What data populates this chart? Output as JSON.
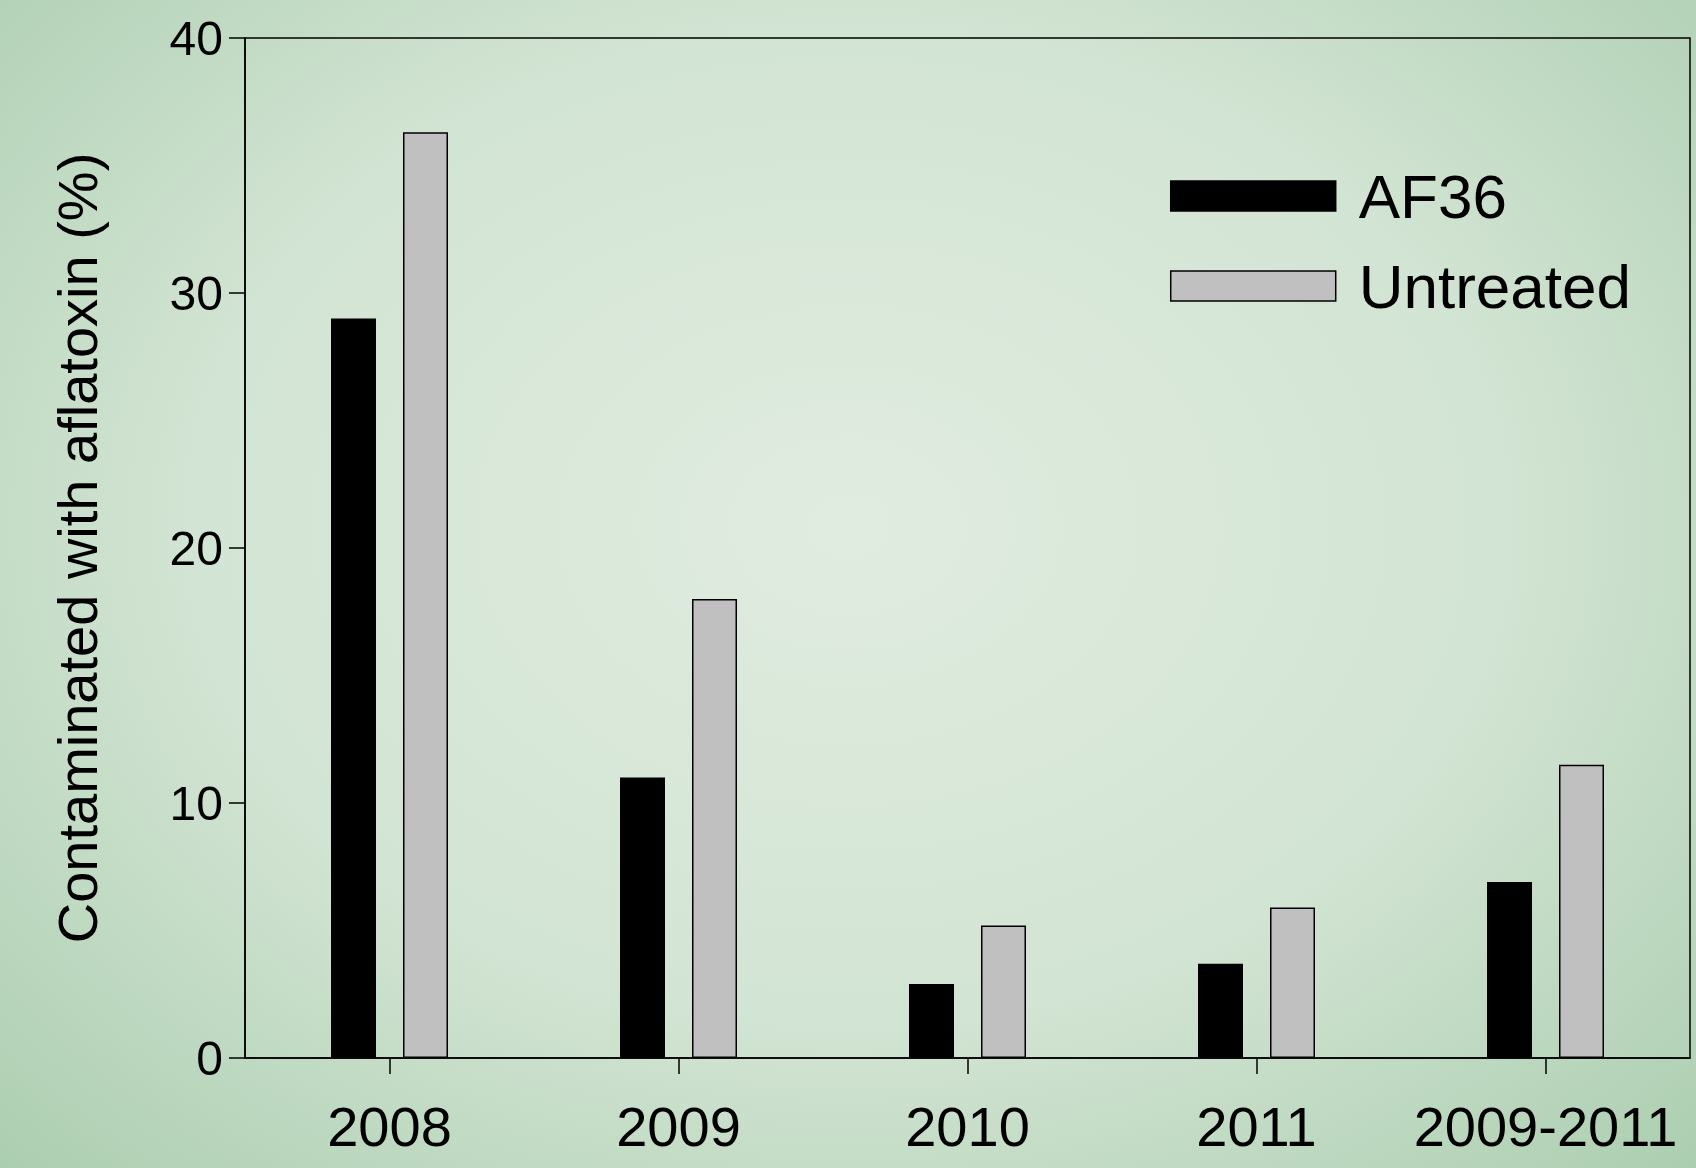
{
  "chart_data": {
    "type": "bar",
    "ylabel": "Contaminated with aflatoxin (%)",
    "categories": [
      "2008",
      "2009",
      "2010",
      "2011",
      "2009-2011"
    ],
    "series": [
      {
        "name": "AF36",
        "color": "#000000",
        "values": [
          29,
          11,
          2.9,
          3.7,
          6.9
        ]
      },
      {
        "name": "Untreated",
        "color": "#c0c0c0",
        "values": [
          36.3,
          18,
          5.2,
          5.9,
          11.5
        ]
      }
    ],
    "ylim": [
      0,
      40
    ],
    "yticks": [
      0,
      10,
      20,
      30,
      40
    ],
    "grid": false,
    "legend": "top right"
  }
}
